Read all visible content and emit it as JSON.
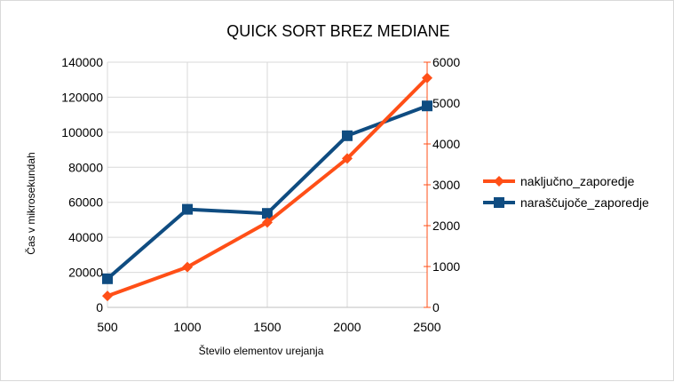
{
  "chart_data": {
    "type": "line",
    "title": "QUICK SORT BREZ MEDIANE",
    "xlabel": "Število elementov urejanja",
    "ylabel": "Čas v mikrosekundah",
    "categories": [
      500,
      1000,
      1500,
      2000,
      2500
    ],
    "ylim": [
      0,
      140000
    ],
    "y_ticks": [
      0,
      20000,
      40000,
      60000,
      80000,
      100000,
      120000,
      140000
    ],
    "y2lim": [
      0,
      6000
    ],
    "y2_ticks": [
      0,
      1000,
      2000,
      3000,
      4000,
      5000,
      6000
    ],
    "grid": "horizontal",
    "legend_position": "right",
    "series": [
      {
        "name": "naključno_zaporedje",
        "axis": "primary",
        "color": "#ff4f17",
        "marker": "diamond",
        "values": [
          6500,
          23000,
          48500,
          85000,
          131000
        ]
      },
      {
        "name": "naraščujoče_zaporedje",
        "axis": "secondary",
        "color": "#0f4c81",
        "marker": "square",
        "values": [
          700,
          2400,
          2300,
          4200,
          4930
        ]
      }
    ]
  }
}
